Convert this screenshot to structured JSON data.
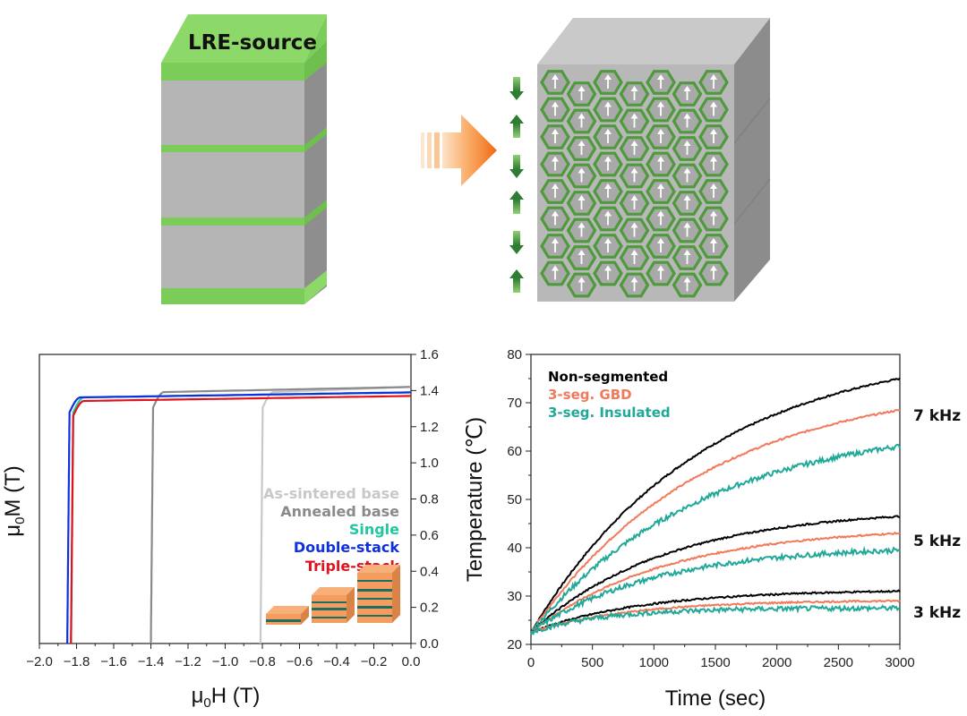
{
  "schematic": {
    "source_label": "LRE-source",
    "colors": {
      "source_layer": "#8cd96a",
      "block": "#b3b3b3",
      "block_side": "#8c8c8c",
      "grain_border": "#4e9a3c",
      "arrow": "#f47a20"
    }
  },
  "chart_data": [
    {
      "type": "line",
      "title": "",
      "xlabel": "μ0H (T)",
      "ylabel": "μ0M (T)",
      "xlim": [
        -2.0,
        0.0
      ],
      "ylim": [
        0.0,
        1.6
      ],
      "xticks": [
        "−2.0",
        "−1.8",
        "−1.6",
        "−1.4",
        "−1.2",
        "−1.0",
        "−0.8",
        "−0.6",
        "−0.4",
        "−0.2",
        "0.0"
      ],
      "yticks": [
        "0.0",
        "0.2",
        "0.4",
        "0.6",
        "0.8",
        "1.0",
        "1.2",
        "1.4",
        "1.6"
      ],
      "legend_position": "center-right",
      "series": [
        {
          "name": "As-sintered base",
          "color": "#c8c8c8",
          "coercivity": -0.81,
          "saturation": 1.42
        },
        {
          "name": "Annealed base",
          "color": "#8a8a8a",
          "coercivity": -1.4,
          "saturation": 1.42
        },
        {
          "name": "Single",
          "color": "#20c8a0",
          "coercivity": -1.83,
          "saturation": 1.39
        },
        {
          "name": "Double-stack",
          "color": "#1030e0",
          "coercivity": -1.85,
          "saturation": 1.39
        },
        {
          "name": "Triple-stack",
          "color": "#e0141e",
          "coercivity": -1.83,
          "saturation": 1.37
        }
      ]
    },
    {
      "type": "line",
      "title": "",
      "xlabel": "Time (sec)",
      "ylabel": "Temperature (℃)",
      "xlim": [
        0,
        3000
      ],
      "ylim": [
        20,
        80
      ],
      "xticks": [
        "0",
        "500",
        "1000",
        "1500",
        "2000",
        "2500",
        "3000"
      ],
      "yticks": [
        "20",
        "30",
        "40",
        "50",
        "60",
        "70",
        "80"
      ],
      "legend_position": "top-left",
      "legend": [
        {
          "name": "Non-segmented",
          "color": "#000000"
        },
        {
          "name": "3-seg. GBD",
          "color": "#f07a5a"
        },
        {
          "name": "3-seg. Insulated",
          "color": "#20a898"
        }
      ],
      "frequency_labels": [
        "7 kHz",
        "5 kHz",
        "3 kHz"
      ],
      "series": [
        {
          "name": "Non-segmented 7 kHz",
          "color": "#000000",
          "start": 22.5,
          "end": 75,
          "tau": 1400
        },
        {
          "name": "3-seg. GBD 7 kHz",
          "color": "#f07a5a",
          "start": 22.5,
          "end": 68.5,
          "tau": 1400
        },
        {
          "name": "3-seg. Insulated 7 kHz",
          "color": "#20a898",
          "start": 22.5,
          "end": 61,
          "tau": 1400
        },
        {
          "name": "Non-segmented 5 kHz",
          "color": "#000000",
          "start": 22.5,
          "end": 46.5,
          "tau": 1100
        },
        {
          "name": "3-seg. GBD 5 kHz",
          "color": "#f07a5a",
          "start": 22.5,
          "end": 43,
          "tau": 1100
        },
        {
          "name": "3-seg. Insulated 5 kHz",
          "color": "#20a898",
          "start": 22.5,
          "end": 39.5,
          "tau": 1000
        },
        {
          "name": "Non-segmented 3 kHz",
          "color": "#000000",
          "start": 22.5,
          "end": 31,
          "tau": 900
        },
        {
          "name": "3-seg. GBD 3 kHz",
          "color": "#f07a5a",
          "start": 22.5,
          "end": 29,
          "tau": 800
        },
        {
          "name": "3-seg. Insulated 3 kHz",
          "color": "#20a898",
          "start": 22.5,
          "end": 27.5,
          "tau": 600
        }
      ]
    }
  ]
}
